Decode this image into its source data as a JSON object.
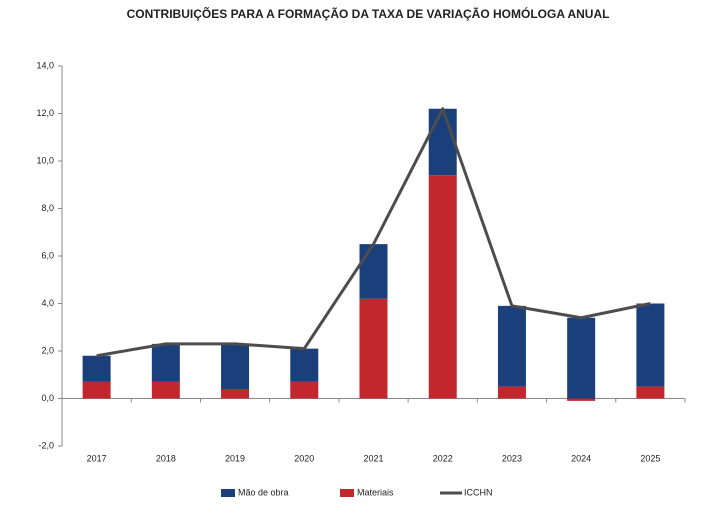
{
  "chart_data": {
    "type": "bar",
    "stacked": true,
    "title": "CONTRIBUIÇÕES PARA A FORMAÇÃO DA TAXA DE VARIAÇÃO HOMÓLOGA ANUAL",
    "categories": [
      "2017",
      "2018",
      "2019",
      "2020",
      "2021",
      "2022",
      "2023",
      "2024",
      "2025"
    ],
    "series": [
      {
        "name": "Mão de obra",
        "color": "#1b3f7a",
        "type": "bar",
        "values": [
          1.1,
          1.6,
          1.9,
          1.4,
          2.3,
          2.8,
          3.4,
          3.4,
          3.5
        ]
      },
      {
        "name": "Materiais",
        "color": "#c1272d",
        "type": "bar",
        "values": [
          0.7,
          0.7,
          0.4,
          0.7,
          4.2,
          9.4,
          0.5,
          -0.1,
          0.5
        ]
      },
      {
        "name": "ICCHN",
        "color": "#4d4d4d",
        "type": "line",
        "values": [
          1.8,
          2.3,
          2.3,
          2.1,
          6.5,
          12.2,
          3.9,
          3.4,
          4.0
        ]
      }
    ],
    "ylim": [
      -2,
      14
    ],
    "yticks": [
      {
        "value": -2,
        "label": "-2,0"
      },
      {
        "value": 0,
        "label": "0,0"
      },
      {
        "value": 2,
        "label": "2,0"
      },
      {
        "value": 4,
        "label": "4,0"
      },
      {
        "value": 6,
        "label": "6,0"
      },
      {
        "value": 8,
        "label": "8,0"
      },
      {
        "value": 10,
        "label": "10,0"
      },
      {
        "value": 12,
        "label": "12,0"
      },
      {
        "value": 14,
        "label": "14,0"
      }
    ],
    "grid": false,
    "legend": "bottom"
  }
}
